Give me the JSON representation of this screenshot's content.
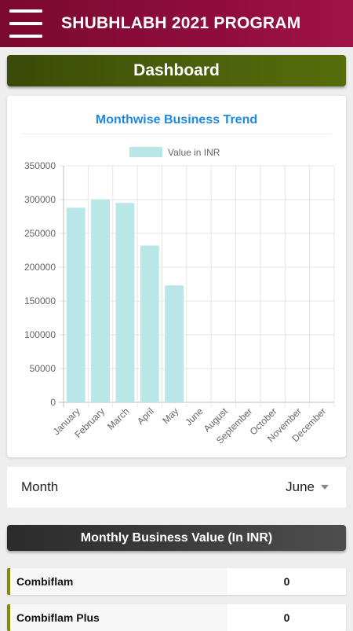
{
  "header": {
    "title": "SHUBHLABH 2021 PROGRAM",
    "menu_icon": "hamburger-icon"
  },
  "dashboard": {
    "title": "Dashboard"
  },
  "chart": {
    "title": "Monthwise Business Trend"
  },
  "chart_data": {
    "type": "bar",
    "title": "Monthwise Business Trend",
    "categories": [
      "January",
      "February",
      "March",
      "April",
      "May",
      "June",
      "August",
      "September",
      "October",
      "November",
      "December"
    ],
    "series": [
      {
        "name": "Value in INR",
        "values": [
          288000,
          300000,
          295000,
          232000,
          173000,
          0,
          0,
          0,
          0,
          0,
          0
        ],
        "color": "#b9e6e7"
      }
    ],
    "yticks": [
      "0",
      "50000",
      "100000",
      "150000",
      "200000",
      "250000",
      "300000",
      "350000"
    ],
    "ylim": [
      0,
      350000
    ],
    "grid": true,
    "legend": "top"
  },
  "month": {
    "label": "Month",
    "selected": "June"
  },
  "monthly_value": {
    "title": "Monthly Business Value (In INR)"
  },
  "products": [
    {
      "name": "Combiflam",
      "value": "0"
    },
    {
      "name": "Combiflam Plus",
      "value": "0"
    }
  ]
}
